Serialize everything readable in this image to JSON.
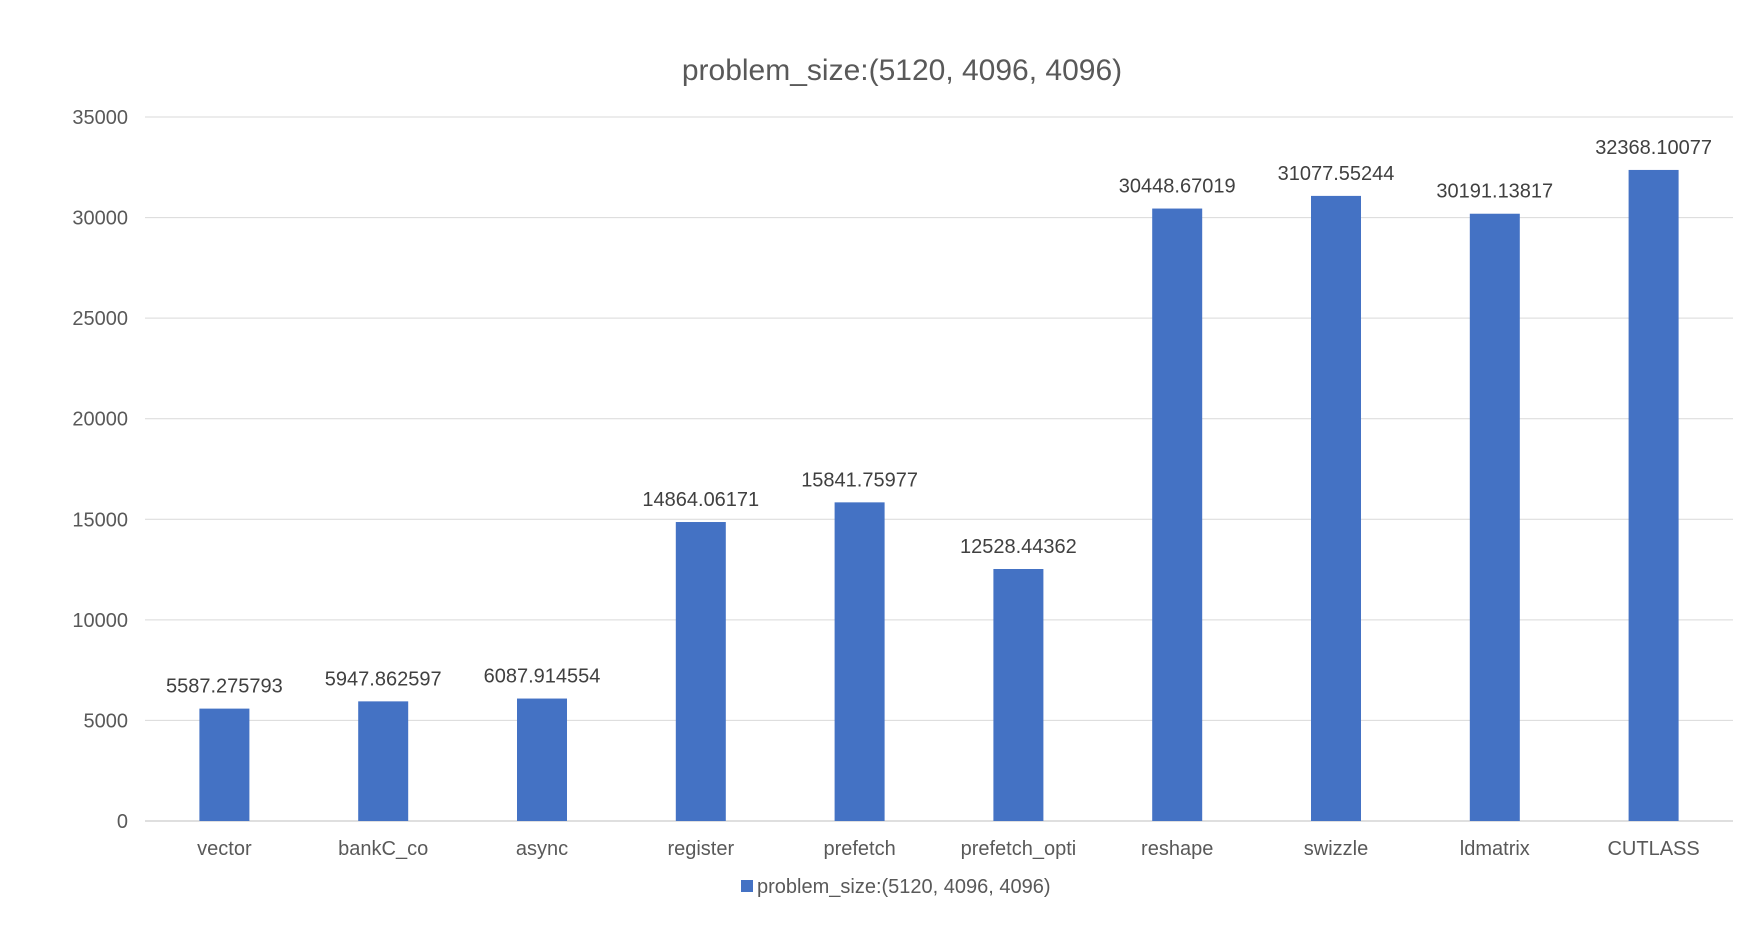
{
  "chart_data": {
    "type": "bar",
    "title": "problem_size:(5120, 4096, 4096)",
    "xlabel": "",
    "ylabel": "",
    "categories": [
      "vector",
      "bankC_co",
      "async",
      "register",
      "prefetch",
      "prefetch_opti",
      "reshape",
      "swizzle",
      "ldmatrix",
      "CUTLASS"
    ],
    "series": [
      {
        "name": "problem_size:(5120, 4096, 4096)",
        "values": [
          5587.275793,
          5947.862597,
          6087.914554,
          14864.06171,
          15841.75977,
          12528.44362,
          30448.67019,
          31077.55244,
          30191.13817,
          32368.10077
        ],
        "data_labels": [
          "5587.275793",
          "5947.862597",
          "6087.914554",
          "14864.06171",
          "15841.75977",
          "12528.44362",
          "30448.67019",
          "31077.55244",
          "30191.13817",
          "32368.10077"
        ],
        "color": "#4472C4"
      }
    ],
    "ylim": [
      0,
      35000
    ],
    "yticks": [
      0,
      5000,
      10000,
      15000,
      20000,
      25000,
      30000,
      35000
    ],
    "ytick_labels": [
      "0",
      "5000",
      "10000",
      "15000",
      "20000",
      "25000",
      "30000",
      "35000"
    ],
    "grid": true,
    "legend_position": "bottom",
    "colors": {
      "bar": "#4472C4",
      "grid": "#D9D9D9",
      "axis": "#BFBFBF",
      "text": "#595959"
    }
  }
}
